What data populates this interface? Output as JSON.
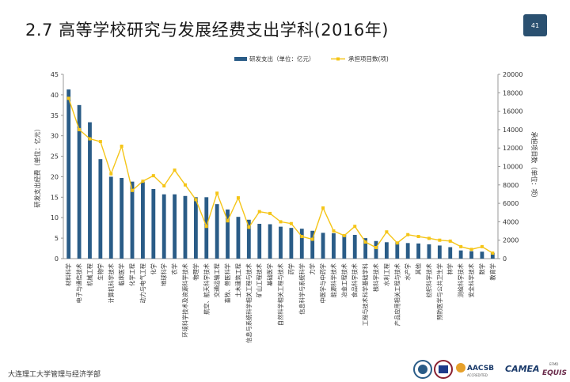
{
  "title": "2.7 高等学校研究与发展经费支出学科(2016年)",
  "page_number": "41",
  "footer": "大连理工大学管理与经济学部",
  "logos": {
    "aacsb": "AACSB",
    "aacsb_sub": "ACCREDITED",
    "camea": "CAMEA",
    "equis": "EQUIS",
    "efmd": "EFMD"
  },
  "colors": {
    "bar": "#2a5c87",
    "line": "#f5c518",
    "badge": "#2a5070"
  },
  "chart_data": {
    "type": "bar",
    "legend_position": "top-center",
    "ylabel": "研发支出经费（单位：亿元）",
    "y2label": "承担项目数（单位：项）",
    "ylim": [
      0,
      45
    ],
    "y2lim": [
      0,
      20000
    ],
    "yticks": [
      "0",
      "5",
      "10",
      "15",
      "20",
      "25",
      "30",
      "35",
      "40",
      "45"
    ],
    "y2ticks": [
      "0",
      "2000",
      "4000",
      "6000",
      "8000",
      "10000",
      "12000",
      "14000",
      "16000",
      "18000",
      "20000"
    ],
    "categories": [
      "材料科学",
      "电子与通信技术",
      "机械工程",
      "生物学",
      "计算机科学技术",
      "临床医学",
      "化学工程",
      "动力与电气工程",
      "化学",
      "地球科学",
      "农学",
      "环境科学技术及资源科学技术",
      "物理学",
      "航空、航天科学技术",
      "交通运输工程",
      "畜牧、兽医科学",
      "土木建筑工程",
      "信息与系统科学相关工程与技术",
      "矿山工程技术",
      "基础医学",
      "自然科学相关工程与技术",
      "药学",
      "信息科学与系统科学",
      "力学",
      "中医学与中药学",
      "能源科学技术",
      "冶金工程技术",
      "食品科学技术",
      "工程与技术科学基础学科",
      "核科学技术",
      "水利工程",
      "产品应用相关工程与技术",
      "水产学",
      "其他",
      "纺织科学技术",
      "预防医学与公共卫生学",
      "林学",
      "测绘科学技术",
      "安全科学技术",
      "数学",
      "教育学"
    ],
    "series": [
      {
        "name": "研发支出（单位：亿元）",
        "type": "bar",
        "axis": "left",
        "values": [
          41.3,
          37.5,
          33.3,
          24.3,
          20.0,
          19.7,
          18.8,
          18.8,
          17.0,
          15.7,
          15.7,
          15.3,
          15.0,
          15.0,
          13.3,
          12.0,
          10.2,
          9.5,
          8.5,
          8.4,
          7.8,
          7.5,
          7.3,
          6.8,
          6.3,
          6.2,
          5.8,
          5.8,
          5.0,
          4.3,
          4.0,
          4.0,
          3.8,
          3.7,
          3.5,
          3.2,
          2.8,
          2.0,
          1.8,
          1.7,
          1.4
        ]
      },
      {
        "name": "承担项目数(项)",
        "type": "line",
        "axis": "right",
        "values": [
          17400,
          14000,
          13000,
          12700,
          9200,
          12200,
          7400,
          8400,
          9000,
          7900,
          9600,
          8000,
          6400,
          3500,
          7100,
          4100,
          6600,
          3400,
          5100,
          4900,
          4000,
          3800,
          2400,
          2100,
          5500,
          3000,
          2500,
          3500,
          1800,
          1200,
          2900,
          1700,
          2600,
          2400,
          2200,
          2000,
          1900,
          1300,
          1000,
          1300,
          600
        ]
      }
    ]
  }
}
